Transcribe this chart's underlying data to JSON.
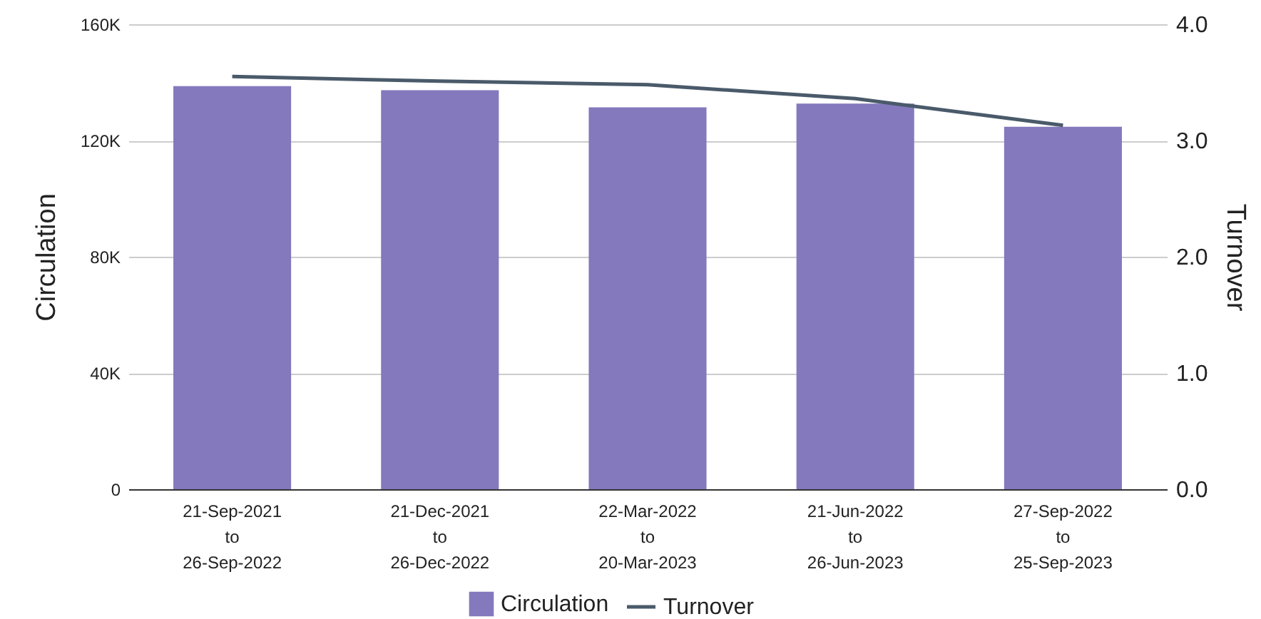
{
  "chart_data": {
    "type": "bar",
    "categories": [
      "21-Sep-2021 to 26-Sep-2022",
      "21-Dec-2021 to 26-Dec-2022",
      "22-Mar-2022 to 20-Mar-2023",
      "21-Jun-2022 to 26-Jun-2023",
      "27-Sep-2022 to 25-Sep-2023"
    ],
    "series": [
      {
        "name": "Circulation",
        "color": "#8479bd",
        "values": [
          138700,
          137300,
          131400,
          132700,
          124700
        ]
      },
      {
        "name": "Turnover",
        "type": "line",
        "axis": "y2",
        "color": "#4a5a6a",
        "values": [
          3.55,
          3.51,
          3.48,
          3.36,
          3.13
        ]
      }
    ],
    "ylabel": "Circulation",
    "y2label": "Turnover",
    "ylim": [
      0,
      160000
    ],
    "yticks": [
      {
        "value": 0,
        "label": "0"
      },
      {
        "value": 40000,
        "label": "40K"
      },
      {
        "value": 80000,
        "label": "80K"
      },
      {
        "value": 120000,
        "label": "120K"
      },
      {
        "value": 160000,
        "label": "160K"
      }
    ],
    "y2lim": [
      0,
      4
    ],
    "y2ticks": [
      {
        "value": 0,
        "label": "0.0"
      },
      {
        "value": 1,
        "label": "1.0"
      },
      {
        "value": 2,
        "label": "2.0"
      },
      {
        "value": 3,
        "label": "3.0"
      },
      {
        "value": 4,
        "label": "4.0"
      }
    ],
    "grid": "y",
    "legend": "bottom"
  }
}
